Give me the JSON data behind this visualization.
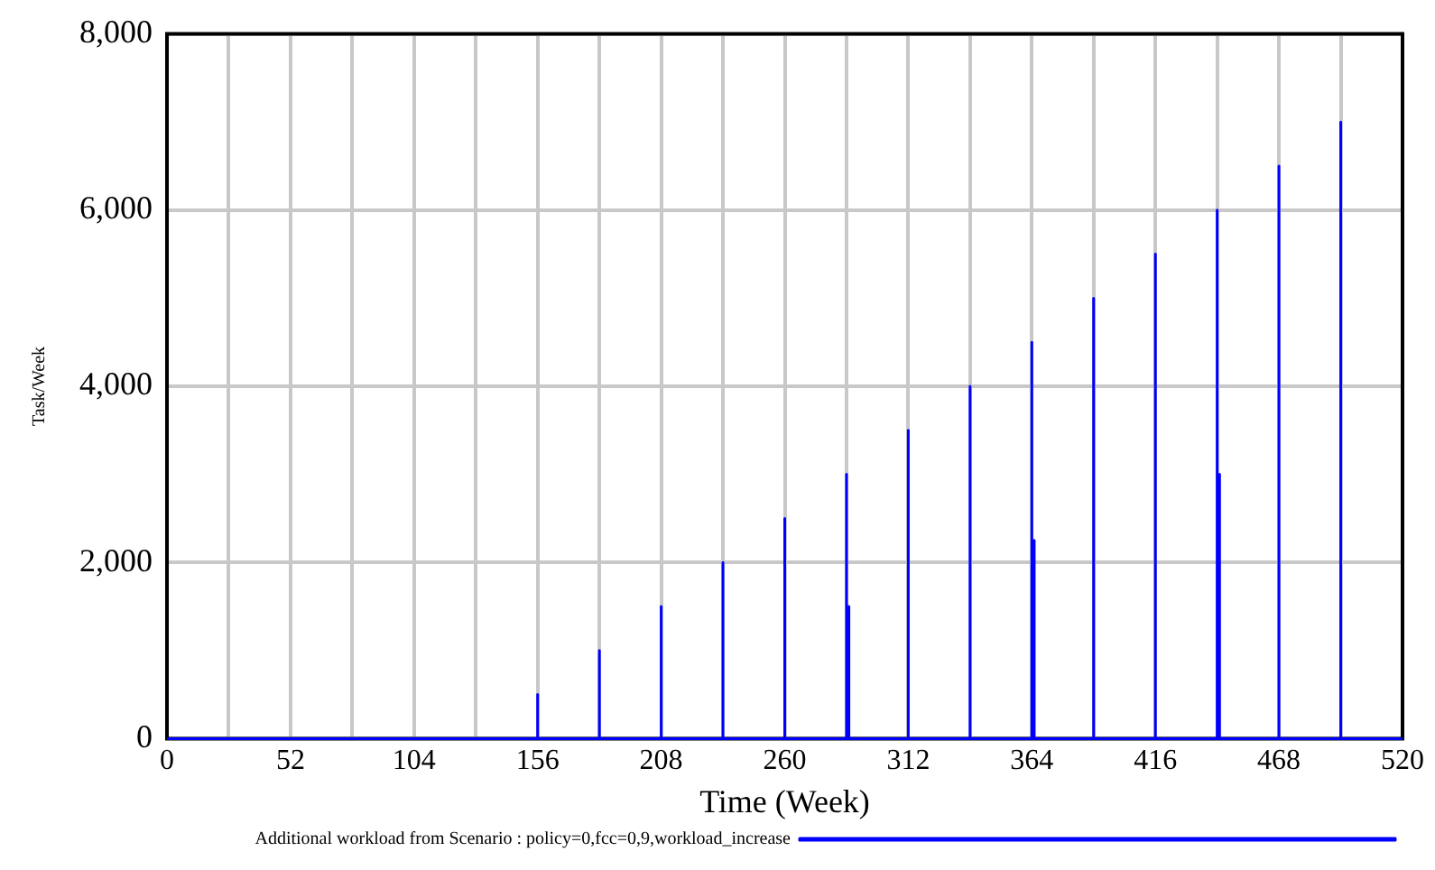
{
  "chart_data": {
    "type": "line",
    "xlabel": "Time (Week)",
    "ylabel": "Task/Week",
    "x": [
      0,
      156,
      156,
      156,
      182,
      182,
      182,
      208,
      208,
      208,
      234,
      234,
      234,
      260,
      260,
      260,
      286,
      286,
      286,
      287,
      287,
      287,
      312,
      312,
      312,
      338,
      338,
      338,
      364,
      364,
      364,
      365,
      365,
      365,
      390,
      390,
      390,
      416,
      416,
      416,
      442,
      442,
      442,
      443,
      443,
      443,
      468,
      468,
      468,
      494,
      494,
      494,
      520
    ],
    "series": [
      {
        "name": "Additional workload from Scenario : policy=0,fcc=0,9,workload_increase",
        "color": "#0000ff",
        "values": [
          0,
          0,
          500,
          0,
          0,
          1000,
          0,
          0,
          1500,
          0,
          0,
          2000,
          0,
          0,
          2500,
          0,
          0,
          3000,
          0,
          0,
          1500,
          0,
          0,
          3500,
          0,
          0,
          4000,
          0,
          0,
          4500,
          0,
          0,
          2250,
          0,
          0,
          5000,
          0,
          0,
          5500,
          0,
          0,
          6000,
          0,
          0,
          3000,
          0,
          0,
          6500,
          0,
          0,
          7000,
          0,
          0
        ]
      }
    ],
    "xlim": [
      0,
      520
    ],
    "xticks": [
      0,
      {
        "value": 26,
        "label": null
      },
      52,
      {
        "value": 78,
        "label": null
      },
      104,
      {
        "value": 130,
        "label": null
      },
      156,
      {
        "value": 182,
        "label": null
      },
      208,
      {
        "value": 234,
        "label": null
      },
      260,
      {
        "value": 286,
        "label": null
      },
      312,
      {
        "value": 338,
        "label": null
      },
      364,
      {
        "value": 390,
        "label": null
      },
      416,
      {
        "value": 442,
        "label": null
      },
      468,
      {
        "value": 494,
        "label": null
      },
      520
    ],
    "ylim": [
      0,
      8000
    ],
    "yticks": [
      0,
      {
        "value": 2000,
        "label": "2,000"
      },
      {
        "value": 4000,
        "label": "4,000"
      },
      {
        "value": 6000,
        "label": "6,000"
      },
      {
        "value": 8000,
        "label": "8,000"
      }
    ],
    "grid": true,
    "legend": "bottom",
    "marker": "none",
    "line_style": "solid"
  }
}
